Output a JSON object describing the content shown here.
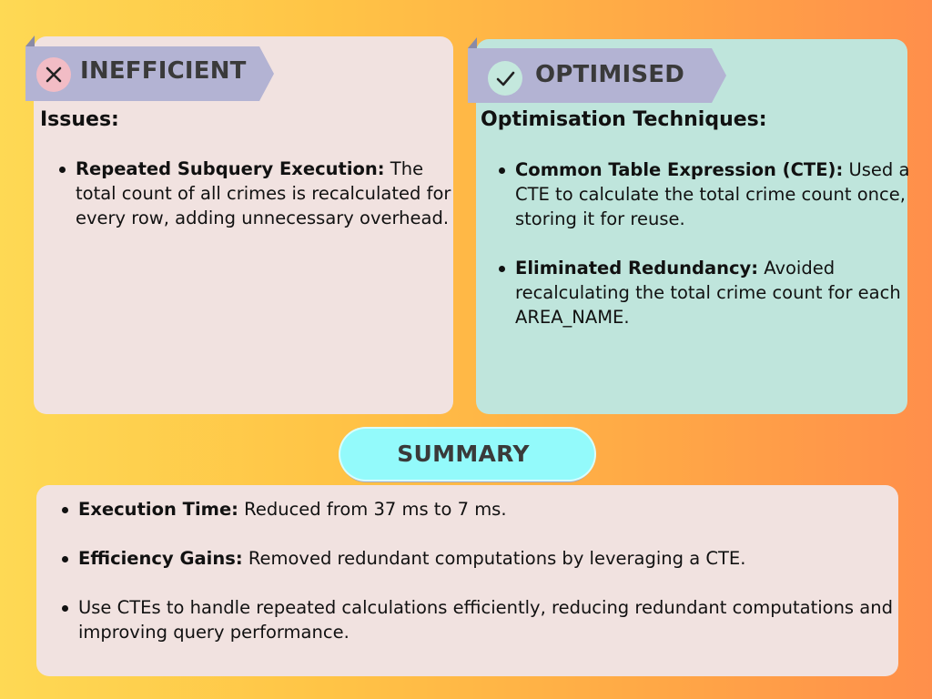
{
  "inefficient": {
    "label": "INEFFICIENT",
    "icon": "close-icon",
    "heading": "Issues:",
    "items": [
      {
        "term": "Repeated Subquery Execution:",
        "text": " The total count of all crimes is recalculated for every row, adding unnecessary overhead."
      }
    ]
  },
  "optimised": {
    "label": "OPTIMISED",
    "icon": "check-icon",
    "heading": "Optimisation Techniques:",
    "items": [
      {
        "term": "Common Table Expression (CTE):",
        "text": " Used a CTE to calculate the total crime count once, storing it for reuse."
      },
      {
        "term": "Eliminated Redundancy:",
        "text": " Avoided recalculating the total crime count for each AREA_NAME."
      }
    ]
  },
  "summary": {
    "label": "SUMMARY",
    "items": [
      {
        "term": "Execution Time:",
        "text": " Reduced from 37 ms to 7 ms."
      },
      {
        "term": "Efficiency Gains:",
        "text": " Removed redundant computations by leveraging a CTE."
      },
      {
        "term": "",
        "text": "Use CTEs to handle repeated calculations efficiently, reducing redundant computations and improving query performance."
      }
    ]
  },
  "colors": {
    "background_start": "#fed954",
    "background_end": "#ff8f4b",
    "panel_pink": "#f1e2e0",
    "panel_teal": "#bfe5dc",
    "ribbon": "#b3b3d3",
    "summary_pill": "#93fafb"
  }
}
